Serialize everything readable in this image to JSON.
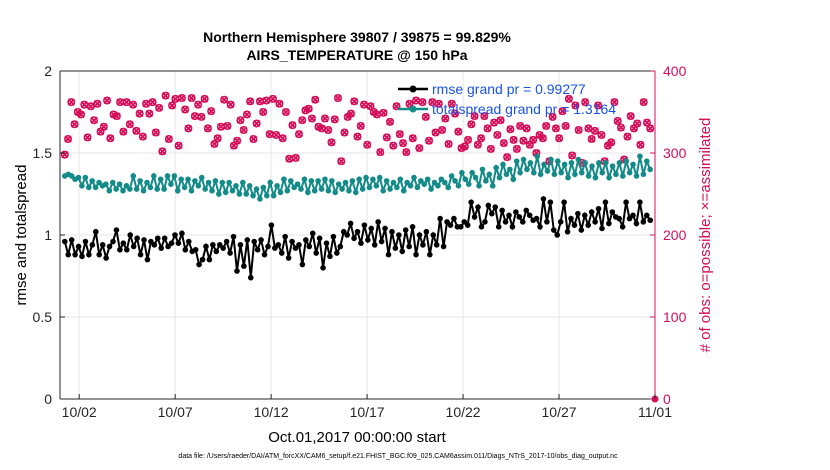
{
  "chart_data": {
    "type": "line",
    "title": [
      "Northern Hemisphere 39807 / 39875 = 99.829%",
      "AIRS_TEMPERATURE @ 150 hPa"
    ],
    "xlabel": "Oct.01,2017 00:00:00 start",
    "ylabel": "rmse and totalspread",
    "y2label": "# of obs: o=possible; ×=assimilated",
    "footnote": "data file: /Users/raeder/DAI/ATM_forcXX/CAM6_setup/f.e21.FHIST_BGC.f09_025.CAM6assim.011/Diags_NTrS_2017-10/obs_diag_output.nc",
    "xlim": [
      0,
      31
    ],
    "ylim": [
      0,
      2
    ],
    "y2lim": [
      0,
      400
    ],
    "grid": true,
    "legend_position": "top-right",
    "x_ticks": [
      {
        "x": 1,
        "label": "10/02"
      },
      {
        "x": 6,
        "label": "10/07"
      },
      {
        "x": 11,
        "label": "10/12"
      },
      {
        "x": 16,
        "label": "10/17"
      },
      {
        "x": 21,
        "label": "10/22"
      },
      {
        "x": 26,
        "label": "10/27"
      },
      {
        "x": 31,
        "label": "11/01"
      }
    ],
    "y_ticks": [
      "0",
      "0.5",
      "1",
      "1.5",
      "2"
    ],
    "y_tick_values": [
      0,
      0.5,
      1,
      1.5,
      2
    ],
    "y2_ticks": [
      "0",
      "100",
      "200",
      "300",
      "400"
    ],
    "y2_tick_values": [
      0,
      100,
      200,
      300,
      400
    ],
    "colors": {
      "rmse": "#000000",
      "spread": "#138b88",
      "obs": "#d40f5a",
      "axis2": "#d40f5a"
    },
    "series": [
      {
        "name": "rmse grand pr = 0.99277",
        "axis": "left",
        "values": [
          0.96,
          0.88,
          0.97,
          0.88,
          0.93,
          0.87,
          0.96,
          0.88,
          0.94,
          1.02,
          0.88,
          0.94,
          0.86,
          0.93,
          0.96,
          1.03,
          0.91,
          0.95,
          0.91,
          1.0,
          0.93,
          0.98,
          0.88,
          0.97,
          0.85,
          0.96,
          0.94,
          0.98,
          0.92,
          0.98,
          0.93,
          0.95,
          1.0,
          0.95,
          1.01,
          0.91,
          0.96,
          0.9,
          0.91,
          0.82,
          0.85,
          0.93,
          0.85,
          0.94,
          0.9,
          0.94,
          0.92,
          0.96,
          0.89,
          0.99,
          0.78,
          0.94,
          0.81,
          0.97,
          0.74,
          0.96,
          0.91,
          0.97,
          0.88,
          0.93,
          1.06,
          0.92,
          0.94,
          0.89,
          0.99,
          0.86,
          0.96,
          0.92,
          0.94,
          0.82,
          0.97,
          0.93,
          1.01,
          0.89,
          0.98,
          0.8,
          0.95,
          0.87,
          0.99,
          0.89,
          0.93,
          1.02,
          1.0,
          1.07,
          0.98,
          1.02,
          0.95,
          1.06,
          0.97,
          1.04,
          0.94,
          1.08,
          0.96,
          1.04,
          0.88,
          1.02,
          0.92,
          1.0,
          0.9,
          1.03,
          0.93,
          1.05,
          0.88,
          1.0,
          0.94,
          1.02,
          0.88,
          1.0,
          0.94,
          1.1,
          0.93,
          1.08,
          1.06,
          1.1,
          1.05,
          1.05,
          1.08,
          1.06,
          1.2,
          1.11,
          1.17,
          1.05,
          1.08,
          1.18,
          1.13,
          1.17,
          1.05,
          1.15,
          1.08,
          1.12,
          1.05,
          1.14,
          1.11,
          1.08,
          1.15,
          1.12,
          1.09,
          1.1,
          1.05,
          1.22,
          1.08,
          1.2,
          1.03,
          1.0,
          1.08,
          1.2,
          1.02,
          1.1,
          1.06,
          1.13,
          1.03,
          1.12,
          1.06,
          1.14,
          1.08,
          1.16,
          1.04,
          1.2,
          1.07,
          1.14,
          1.11,
          1.1,
          1.05,
          1.2,
          1.1,
          1.12,
          1.07,
          1.2,
          1.08,
          1.12,
          1.09
        ]
      },
      {
        "name": "totalspread grand pr = 1.3164",
        "axis": "left",
        "values": [
          1.36,
          1.37,
          1.36,
          1.34,
          1.35,
          1.3,
          1.35,
          1.29,
          1.33,
          1.29,
          1.32,
          1.3,
          1.31,
          1.27,
          1.32,
          1.28,
          1.31,
          1.27,
          1.3,
          1.28,
          1.36,
          1.28,
          1.33,
          1.27,
          1.32,
          1.29,
          1.36,
          1.28,
          1.34,
          1.28,
          1.36,
          1.31,
          1.36,
          1.27,
          1.34,
          1.29,
          1.34,
          1.27,
          1.33,
          1.3,
          1.35,
          1.28,
          1.32,
          1.27,
          1.33,
          1.25,
          1.32,
          1.26,
          1.32,
          1.27,
          1.3,
          1.25,
          1.32,
          1.25,
          1.3,
          1.24,
          1.28,
          1.22,
          1.29,
          1.24,
          1.32,
          1.24,
          1.3,
          1.26,
          1.34,
          1.27,
          1.33,
          1.29,
          1.31,
          1.28,
          1.34,
          1.26,
          1.33,
          1.27,
          1.33,
          1.28,
          1.34,
          1.27,
          1.33,
          1.26,
          1.31,
          1.28,
          1.32,
          1.27,
          1.33,
          1.26,
          1.34,
          1.28,
          1.35,
          1.29,
          1.34,
          1.3,
          1.35,
          1.27,
          1.33,
          1.28,
          1.32,
          1.29,
          1.34,
          1.27,
          1.32,
          1.3,
          1.35,
          1.29,
          1.33,
          1.31,
          1.34,
          1.28,
          1.32,
          1.3,
          1.34,
          1.32,
          1.29,
          1.36,
          1.33,
          1.3,
          1.38,
          1.34,
          1.31,
          1.38,
          1.35,
          1.3,
          1.4,
          1.33,
          1.37,
          1.3,
          1.41,
          1.35,
          1.43,
          1.37,
          1.4,
          1.34,
          1.45,
          1.38,
          1.46,
          1.4,
          1.44,
          1.38,
          1.48,
          1.37,
          1.43,
          1.39,
          1.46,
          1.37,
          1.45,
          1.38,
          1.43,
          1.35,
          1.44,
          1.37,
          1.46,
          1.38,
          1.44,
          1.36,
          1.42,
          1.35,
          1.44,
          1.38,
          1.44,
          1.35,
          1.42,
          1.37,
          1.44,
          1.36,
          1.45,
          1.38,
          1.43,
          1.36,
          1.48,
          1.37,
          1.45,
          1.4
        ]
      },
      {
        "name": "possible",
        "axis": "right",
        "marker": "o",
        "values": [
          298,
          317,
          362,
          335,
          350,
          347,
          359,
          319,
          357,
          340,
          360,
          326,
          332,
          364,
          318,
          347,
          345,
          362,
          326,
          362,
          335,
          359,
          327,
          348,
          320,
          360,
          348,
          362,
          325,
          355,
          302,
          370,
          317,
          358,
          366,
          309,
          367,
          353,
          330,
          367,
          345,
          359,
          344,
          366,
          330,
          351,
          311,
          318,
          332,
          365,
          333,
          359,
          309,
          315,
          340,
          328,
          347,
          363,
          317,
          336,
          363,
          350,
          364,
          323,
          366,
          322,
          360,
          318,
          350,
          293,
          334,
          294,
          323,
          340,
          352,
          354,
          342,
          365,
          332,
          330,
          342,
          328,
          313,
          341,
          367,
          290,
          325,
          344,
          348,
          363,
          320,
          333,
          359,
          310,
          357,
          350,
          347,
          301,
          349,
          319,
          338,
          309,
          357,
          323,
          312,
          301,
          360,
          318,
          364,
          306,
          362,
          344,
          315,
          362,
          325,
          360,
          328,
          342,
          311,
          360,
          348,
          326,
          306,
          308,
          316,
          335,
          345,
          310,
          318,
          345,
          330,
          305,
          337,
          322,
          340,
          312,
          295,
          329,
          316,
          305,
          333,
          315,
          330,
          310,
          316,
          300,
          322,
          318,
          333,
          290,
          344,
          330,
          318,
          351,
          333,
          366,
          297,
          358,
          328,
          288,
          362,
          330,
          317,
          327,
          358,
          322,
          290,
          309,
          313,
          362,
          339,
          331,
          292,
          320,
          345,
          330,
          336,
          310,
          362,
          337,
          330
        ]
      },
      {
        "name": "assimilated",
        "axis": "right",
        "marker": "x",
        "values": [
          298,
          317,
          362,
          335,
          350,
          347,
          359,
          319,
          357,
          340,
          360,
          326,
          332,
          364,
          318,
          347,
          345,
          362,
          326,
          362,
          335,
          359,
          327,
          348,
          320,
          360,
          348,
          362,
          325,
          355,
          302,
          370,
          317,
          358,
          366,
          309,
          367,
          353,
          330,
          367,
          345,
          359,
          344,
          366,
          330,
          351,
          311,
          318,
          332,
          365,
          333,
          359,
          309,
          315,
          340,
          328,
          347,
          363,
          317,
          336,
          363,
          350,
          364,
          323,
          366,
          322,
          360,
          318,
          350,
          293,
          334,
          294,
          323,
          340,
          352,
          354,
          342,
          365,
          332,
          330,
          342,
          328,
          313,
          341,
          367,
          290,
          325,
          344,
          348,
          363,
          320,
          333,
          359,
          310,
          357,
          350,
          347,
          301,
          349,
          319,
          338,
          309,
          357,
          323,
          312,
          301,
          360,
          318,
          364,
          306,
          362,
          344,
          315,
          362,
          325,
          360,
          328,
          342,
          311,
          360,
          348,
          326,
          306,
          308,
          316,
          335,
          345,
          310,
          318,
          345,
          330,
          305,
          337,
          322,
          340,
          312,
          295,
          329,
          316,
          305,
          333,
          315,
          330,
          310,
          316,
          300,
          322,
          318,
          333,
          290,
          344,
          330,
          318,
          351,
          333,
          366,
          297,
          358,
          328,
          288,
          362,
          330,
          317,
          327,
          358,
          322,
          290,
          309,
          313,
          362,
          339,
          331,
          292,
          320,
          345,
          330,
          336,
          310,
          362,
          337,
          330
        ]
      }
    ],
    "y2_extra_marker_value": 0
  }
}
